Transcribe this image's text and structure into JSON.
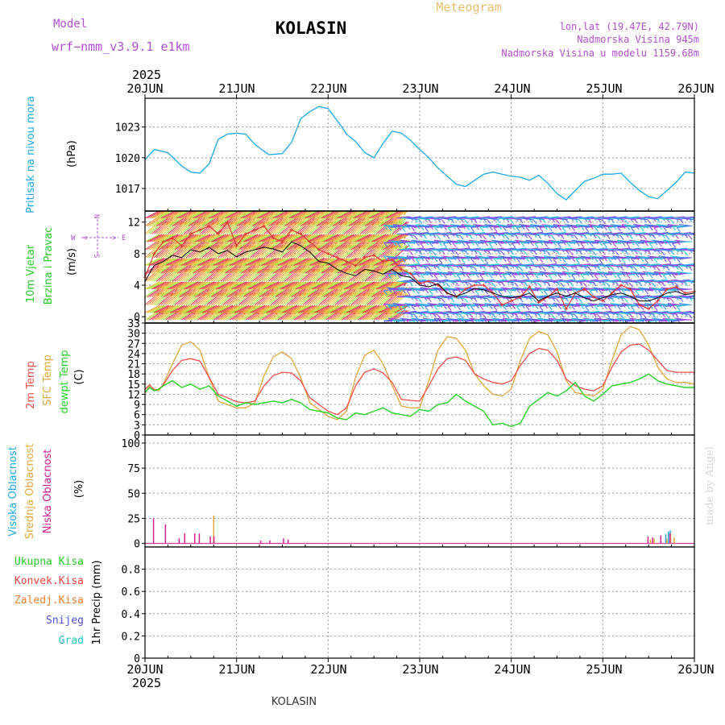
{
  "header": {
    "model_label": "Model",
    "model_name": "wrf−nmm_v3.9.1 e1km",
    "station": "KOLASIN",
    "product": "Meteogram",
    "lonlat": "lon,lat (19.47E, 42.79N)",
    "elevation": "Nadmorska Visina 945m",
    "model_elevation": "Nadmorska Visina u modelu 1159.68m",
    "year": "2025"
  },
  "footer": {
    "station": "KOLASIN",
    "year": "2025",
    "credit": "made by Angel"
  },
  "time_axis": {
    "labels": [
      "20JUN",
      "21JUN",
      "22JUN",
      "23JUN",
      "24JUN",
      "25JUN",
      "26JUN"
    ]
  },
  "panel_labels": {
    "pressure": {
      "name": "Pritisak na nivou mora",
      "unit": "(hPa)"
    },
    "wind": {
      "name1": "10m Vjetar",
      "name2": "Brzina i Pravac",
      "unit": "(m/s)",
      "compass": {
        "n": "N",
        "w": "W",
        "e": "E",
        "s": "S"
      }
    },
    "temp": {
      "t2m": "2m Temp",
      "sfc": "SFC Temp",
      "dew": "dewpt Temp",
      "unit": "(C)"
    },
    "cloud": {
      "high": "Visoka Oblacnost",
      "mid": "Srednja Oblacnost",
      "low": "Niska Oblacnost",
      "unit": "(%)"
    },
    "precip": {
      "total": "Ukupna Kisa",
      "conv": "Konvek.Kisa",
      "frozen": "Zaledj.Kisa",
      "snow": "Snijeg",
      "grad": "Grad",
      "unit": "1hr Precip (mm)"
    }
  },
  "colors": {
    "pressure": "#1ea8e8",
    "t2m": "#f0504a",
    "sfc": "#e0a840",
    "dew": "#28d228",
    "wind_speed": "#000000",
    "wind_gust": "#e03838",
    "cloud_high": "#20a8e0",
    "cloud_mid": "#e0a840",
    "cloud_low": "#d82090",
    "precip_total": "#28c828",
    "precip_conv": "#f04040",
    "precip_frozen": "#f08030",
    "precip_snow": "#5050e8",
    "precip_grad": "#20c8c0",
    "header_purple": "#b050d0",
    "header_orange": "#e8c070",
    "grid": "#888888"
  },
  "chart_data": [
    {
      "type": "line",
      "title": "",
      "ylabel": "(hPa)",
      "ylim": [
        1014.8,
        1025.8
      ],
      "yticks": [
        "1017",
        "1020",
        "1023"
      ],
      "grid": true,
      "x": [
        0,
        0.1,
        0.25,
        0.4,
        0.5,
        0.6,
        0.7,
        0.8,
        0.9,
        1.0,
        1.1,
        1.2,
        1.35,
        1.5,
        1.6,
        1.7,
        1.8,
        1.9,
        2.0,
        2.1,
        2.15,
        2.2,
        2.3,
        2.4,
        2.5,
        2.6,
        2.7,
        2.8,
        2.9,
        3.0,
        3.1,
        3.2,
        3.3,
        3.4,
        3.5,
        3.6,
        3.7,
        3.8,
        3.9,
        4.0,
        4.1,
        4.2,
        4.3,
        4.4,
        4.5,
        4.6,
        4.7,
        4.8,
        4.9,
        5.0,
        5.1,
        5.2,
        5.3,
        5.4,
        5.5,
        5.6,
        5.7,
        5.8,
        5.9,
        6.0
      ],
      "series": [
        {
          "values": [
            1019.8,
            1020.8,
            1020.5,
            1019.2,
            1018.6,
            1018.5,
            1019.4,
            1021.8,
            1022.3,
            1022.4,
            1022.3,
            1021.3,
            1020.3,
            1020.4,
            1021.5,
            1023.8,
            1024.5,
            1025.0,
            1024.8,
            1023.6,
            1023.0,
            1022.3,
            1021.6,
            1020.5,
            1020.0,
            1021.4,
            1022.6,
            1022.4,
            1021.7,
            1020.8,
            1020.0,
            1019.0,
            1018.2,
            1017.4,
            1017.2,
            1017.8,
            1018.4,
            1018.6,
            1018.4,
            1018.2,
            1018.1,
            1017.8,
            1018.3,
            1017.5,
            1016.5,
            1015.9,
            1016.8,
            1017.7,
            1018.0,
            1018.4,
            1018.4,
            1018.5,
            1017.6,
            1016.8,
            1016.2,
            1016.0,
            1016.8,
            1017.6,
            1018.6,
            1018.5
          ]
        }
      ]
    },
    {
      "type": "line",
      "title": "",
      "ylabel": "(m/s)",
      "ylim": [
        -0.8,
        13.4
      ],
      "yticks": [
        "0",
        "4",
        "8",
        "12"
      ],
      "grid": true,
      "x": [
        0,
        0.1,
        0.2,
        0.3,
        0.4,
        0.5,
        0.6,
        0.7,
        0.8,
        0.9,
        1.0,
        1.1,
        1.2,
        1.3,
        1.4,
        1.5,
        1.6,
        1.7,
        1.8,
        1.9,
        2.0,
        2.1,
        2.2,
        2.3,
        2.4,
        2.5,
        2.6,
        2.7,
        2.8,
        2.9,
        3.0,
        3.1,
        3.2,
        3.3,
        3.4,
        3.5,
        3.6,
        3.7,
        3.8,
        3.9,
        4.0,
        4.1,
        4.2,
        4.3,
        4.4,
        4.5,
        4.6,
        4.7,
        4.8,
        4.9,
        5.0,
        5.1,
        5.2,
        5.3,
        5.4,
        5.5,
        5.6,
        5.7,
        5.8,
        5.9,
        6.0
      ],
      "series": [
        {
          "name": "speed",
          "values": [
            4.5,
            6.5,
            7.0,
            7.8,
            7.5,
            8.5,
            8.2,
            8.8,
            8.0,
            8.4,
            7.6,
            8.2,
            8.5,
            8.8,
            8.6,
            8.2,
            9.5,
            9.0,
            8.2,
            7.0,
            6.8,
            6.0,
            5.5,
            5.2,
            6.0,
            5.8,
            5.4,
            6.0,
            5.2,
            5.0,
            4.0,
            3.8,
            4.2,
            3.0,
            2.6,
            3.0,
            3.6,
            3.4,
            3.0,
            2.6,
            2.4,
            2.6,
            3.0,
            2.0,
            2.6,
            3.0,
            2.6,
            3.0,
            2.4,
            2.0,
            2.4,
            2.8,
            3.0,
            2.6,
            2.0,
            2.0,
            2.4,
            3.0,
            3.2,
            2.8,
            3.0
          ]
        },
        {
          "name": "gust",
          "values": [
            5.0,
            8.0,
            9.5,
            10.0,
            9.0,
            10.5,
            11.0,
            11.5,
            10.5,
            12.0,
            9.0,
            10.5,
            11.0,
            11.5,
            10.0,
            9.5,
            11.0,
            10.5,
            9.5,
            8.5,
            8.0,
            7.5,
            7.0,
            6.5,
            7.5,
            7.8,
            7.0,
            7.2,
            6.0,
            5.5,
            4.2,
            4.5,
            4.0,
            3.0,
            2.5,
            3.5,
            4.0,
            4.0,
            3.0,
            1.5,
            2.0,
            2.5,
            3.8,
            1.8,
            2.5,
            3.5,
            1.0,
            3.0,
            3.5,
            2.5,
            2.0,
            3.0,
            4.0,
            3.5,
            1.5,
            1.0,
            2.0,
            3.5,
            3.8,
            3.0,
            3.2
          ]
        }
      ]
    },
    {
      "type": "line",
      "title": "",
      "ylabel": "(C)",
      "ylim": [
        0,
        33
      ],
      "yticks": [
        "0",
        "3",
        "6",
        "9",
        "12",
        "15",
        "18",
        "21",
        "24",
        "27",
        "30",
        "33"
      ],
      "grid": true,
      "x": [
        0,
        0.05,
        0.1,
        0.15,
        0.2,
        0.3,
        0.4,
        0.5,
        0.6,
        0.7,
        0.8,
        0.9,
        1.0,
        1.1,
        1.2,
        1.3,
        1.4,
        1.5,
        1.6,
        1.7,
        1.8,
        1.9,
        2.0,
        2.1,
        2.2,
        2.3,
        2.4,
        2.5,
        2.6,
        2.7,
        2.8,
        2.9,
        3.0,
        3.1,
        3.2,
        3.3,
        3.4,
        3.5,
        3.6,
        3.7,
        3.8,
        3.9,
        4.0,
        4.1,
        4.2,
        4.3,
        4.4,
        4.5,
        4.6,
        4.7,
        4.8,
        4.9,
        5.0,
        5.1,
        5.2,
        5.3,
        5.4,
        5.5,
        5.6,
        5.7,
        5.8,
        5.9,
        6.0
      ],
      "series": [
        {
          "name": "2m Temp",
          "values": [
            13.5,
            14.8,
            13.2,
            13.5,
            14.8,
            19.0,
            22.0,
            22.5,
            21.8,
            17.0,
            12.0,
            11.0,
            9.8,
            9.5,
            10.0,
            14.5,
            17.5,
            18.5,
            18.3,
            16.0,
            11.0,
            9.0,
            7.0,
            6.0,
            8.0,
            14.5,
            18.5,
            19.5,
            18.3,
            15.5,
            10.5,
            10.2,
            10.0,
            14.5,
            19.5,
            22.5,
            23.0,
            22.0,
            18.0,
            16.5,
            15.5,
            15.0,
            16.0,
            20.5,
            24.0,
            25.5,
            25.0,
            22.0,
            16.5,
            14.5,
            13.5,
            13.0,
            14.5,
            20.0,
            24.5,
            26.5,
            26.8,
            25.0,
            22.0,
            19.0,
            18.5,
            18.5,
            18.5
          ]
        },
        {
          "name": "SFC Temp",
          "values": [
            12.5,
            14.5,
            13.5,
            13.0,
            15.0,
            21.0,
            26.5,
            27.5,
            25.0,
            17.0,
            10.0,
            9.0,
            8.0,
            8.0,
            9.5,
            17.5,
            23.0,
            24.5,
            22.5,
            17.0,
            9.5,
            7.5,
            5.5,
            4.5,
            7.0,
            17.0,
            23.5,
            25.0,
            21.0,
            14.5,
            8.5,
            8.0,
            8.0,
            16.0,
            25.0,
            29.0,
            28.5,
            25.0,
            18.0,
            14.5,
            12.0,
            11.5,
            13.5,
            22.0,
            28.5,
            30.5,
            29.5,
            24.5,
            16.0,
            12.5,
            12.0,
            11.5,
            13.5,
            22.0,
            29.5,
            32.0,
            31.0,
            26.5,
            20.0,
            16.5,
            15.5,
            15.5,
            15.0
          ]
        },
        {
          "name": "dewpt Temp",
          "values": [
            12.5,
            14.0,
            13.0,
            13.5,
            14.5,
            16.0,
            14.0,
            15.0,
            13.5,
            14.5,
            11.5,
            10.0,
            8.5,
            9.5,
            9.0,
            9.5,
            10.0,
            9.5,
            10.5,
            9.5,
            7.5,
            7.0,
            6.5,
            5.0,
            4.5,
            6.5,
            6.0,
            7.0,
            8.0,
            6.5,
            6.0,
            5.5,
            7.5,
            7.0,
            9.0,
            9.5,
            12.0,
            10.0,
            8.5,
            7.0,
            3.0,
            3.5,
            2.5,
            3.5,
            8.5,
            10.5,
            12.5,
            11.5,
            13.0,
            15.5,
            11.5,
            10.0,
            12.0,
            14.5,
            15.0,
            15.5,
            16.5,
            18.0,
            16.0,
            15.0,
            14.5,
            14.0,
            14.0
          ]
        }
      ]
    },
    {
      "type": "bar",
      "title": "",
      "ylabel": "(%)",
      "ylim": [
        -3.5,
        108
      ],
      "yticks": [
        "0",
        "25",
        "50",
        "75",
        "100"
      ],
      "grid": true,
      "series": [
        {
          "name": "Visoka Oblacnost",
          "values": [
            [
              5.7,
              9
            ],
            [
              5.73,
              12
            ],
            [
              5.75,
              13
            ]
          ]
        },
        {
          "name": "Srednja Oblacnost",
          "values": [
            [
              0.75,
              28
            ],
            [
              5.52,
              4
            ],
            [
              5.56,
              5
            ],
            [
              5.7,
              5
            ],
            [
              5.74,
              10
            ],
            [
              5.78,
              6
            ]
          ]
        },
        {
          "name": "Niska Oblacnost",
          "values": [
            [
              0.08,
              25
            ],
            [
              0.21,
              19
            ],
            [
              0.36,
              5
            ],
            [
              0.42,
              10
            ],
            [
              0.53,
              10
            ],
            [
              0.58,
              10
            ],
            [
              0.7,
              7
            ],
            [
              0.74,
              7
            ],
            [
              1.25,
              3
            ],
            [
              1.35,
              3
            ],
            [
              1.5,
              5
            ],
            [
              1.55,
              4
            ],
            [
              5.48,
              7
            ],
            [
              5.53,
              6
            ],
            [
              5.62,
              8
            ],
            [
              5.72,
              10
            ]
          ]
        }
      ]
    },
    {
      "type": "bar",
      "title": "",
      "ylabel": "1hr Precip (mm)",
      "ylim": [
        0,
        1.0
      ],
      "yticks": [
        "0",
        "0.2",
        "0.4",
        "0.6",
        "0.8"
      ],
      "grid": true,
      "series": []
    }
  ]
}
